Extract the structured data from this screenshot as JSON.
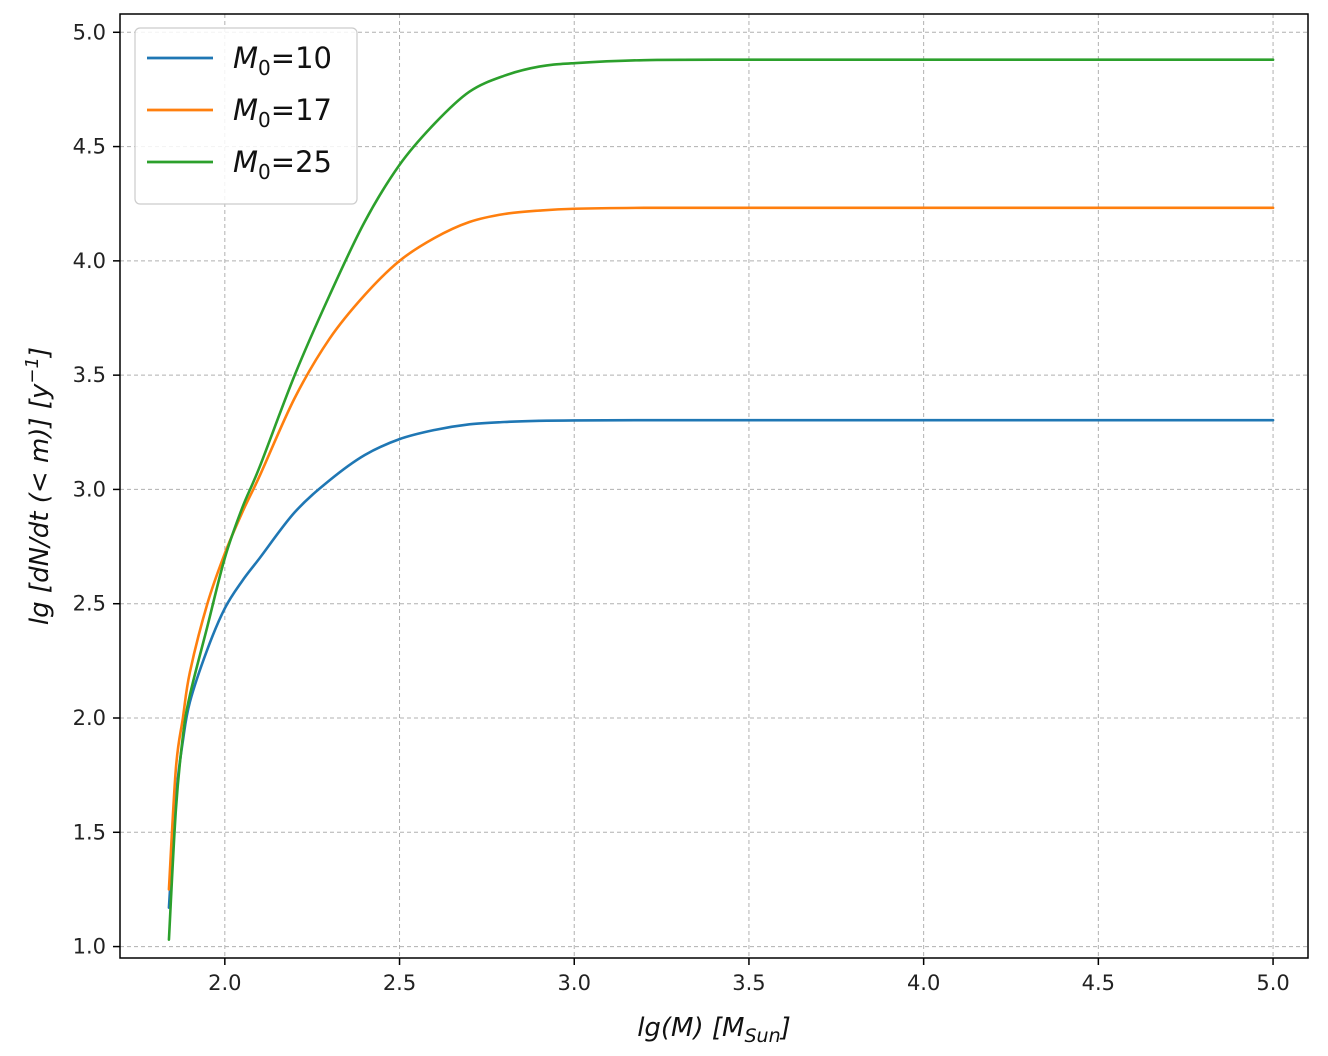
{
  "chart_data": {
    "type": "line",
    "xlabel": "lg(M)  [M",
    "xlabel_sub": "Sun",
    "xlabel_close": "]",
    "ylabel": "lg [dN/dt (< m)]  [y",
    "ylabel_sup": "−1",
    "ylabel_close": "]",
    "xlim": [
      1.7,
      5.1
    ],
    "ylim": [
      0.95,
      5.08
    ],
    "xticks": [
      2.0,
      2.5,
      3.0,
      3.5,
      4.0,
      4.5,
      5.0
    ],
    "xtick_labels": [
      "2.0",
      "2.5",
      "3.0",
      "3.5",
      "4.0",
      "4.5",
      "5.0"
    ],
    "yticks": [
      1.0,
      1.5,
      2.0,
      2.5,
      3.0,
      3.5,
      4.0,
      4.5,
      5.0
    ],
    "ytick_labels": [
      "1.0",
      "1.5",
      "2.0",
      "2.5",
      "3.0",
      "3.5",
      "4.0",
      "4.5",
      "5.0"
    ],
    "grid": true,
    "legend_position": "top-left",
    "series": [
      {
        "name": "M0=10",
        "legend_base": "M",
        "legend_sub": "0",
        "legend_value": "=10",
        "color": "#1f77b4",
        "x": [
          1.84,
          1.86,
          1.88,
          1.9,
          1.95,
          2.0,
          2.05,
          2.1,
          2.2,
          2.3,
          2.4,
          2.5,
          2.6,
          2.7,
          2.8,
          2.9,
          3.0,
          3.2,
          3.5,
          4.0,
          4.5,
          5.0
        ],
        "y": [
          1.17,
          1.65,
          1.9,
          2.07,
          2.3,
          2.48,
          2.6,
          2.7,
          2.9,
          3.04,
          3.15,
          3.22,
          3.26,
          3.285,
          3.295,
          3.3,
          3.302,
          3.303,
          3.303,
          3.303,
          3.303,
          3.303
        ]
      },
      {
        "name": "M0=17",
        "legend_base": "M",
        "legend_sub": "0",
        "legend_value": "=17",
        "color": "#ff7f0e",
        "x": [
          1.84,
          1.86,
          1.88,
          1.9,
          1.95,
          2.0,
          2.05,
          2.1,
          2.2,
          2.3,
          2.4,
          2.5,
          2.6,
          2.7,
          2.8,
          2.9,
          3.0,
          3.2,
          3.5,
          4.0,
          4.5,
          5.0
        ],
        "y": [
          1.25,
          1.78,
          2.0,
          2.2,
          2.5,
          2.72,
          2.9,
          3.06,
          3.4,
          3.66,
          3.85,
          4.0,
          4.1,
          4.17,
          4.205,
          4.22,
          4.228,
          4.232,
          4.232,
          4.232,
          4.232,
          4.232
        ]
      },
      {
        "name": "M0=25",
        "legend_base": "M",
        "legend_sub": "0",
        "legend_value": "=25",
        "color": "#2ca02c",
        "x": [
          1.84,
          1.86,
          1.88,
          1.9,
          1.95,
          2.0,
          2.05,
          2.1,
          2.2,
          2.3,
          2.4,
          2.5,
          2.6,
          2.7,
          2.8,
          2.9,
          3.0,
          3.2,
          3.5,
          4.0,
          4.5,
          5.0
        ],
        "y": [
          1.03,
          1.6,
          1.92,
          2.1,
          2.4,
          2.7,
          2.92,
          3.1,
          3.5,
          3.85,
          4.17,
          4.42,
          4.6,
          4.74,
          4.81,
          4.85,
          4.865,
          4.878,
          4.88,
          4.88,
          4.88,
          4.88
        ]
      }
    ]
  }
}
